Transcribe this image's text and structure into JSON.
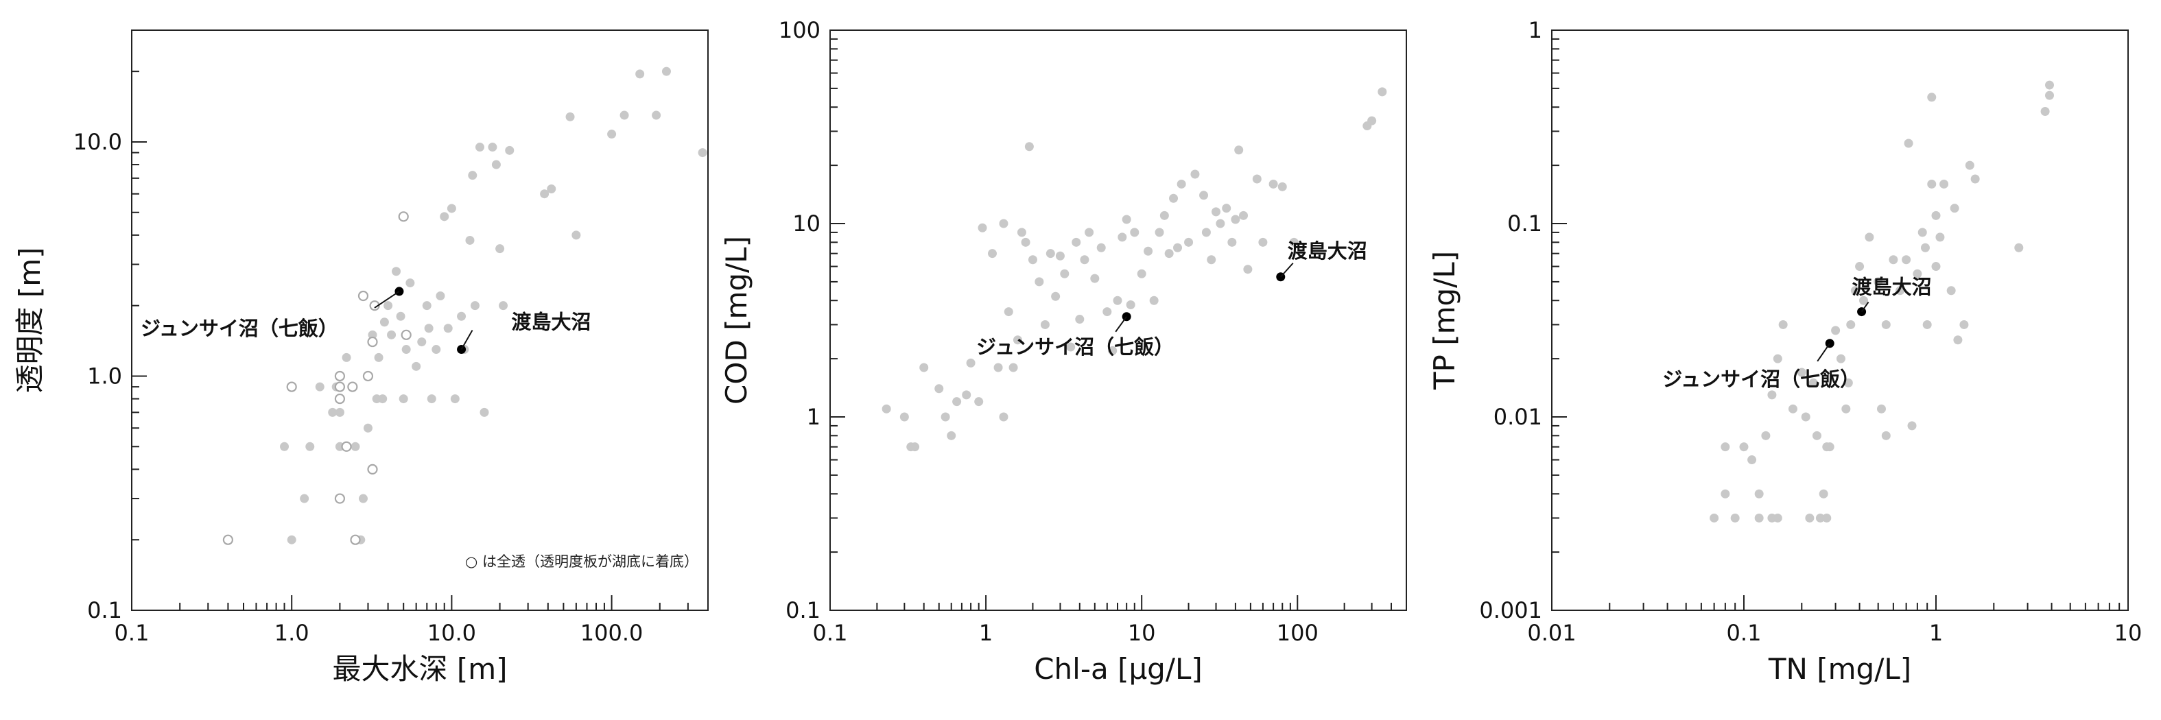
{
  "chart_data": [
    {
      "type": "scatter",
      "xlabel": "最大水深 [m]",
      "ylabel": "透明度 [m]",
      "xscale": "log",
      "yscale": "log",
      "xlim": [
        0.1,
        400
      ],
      "ylim": [
        0.1,
        30
      ],
      "xticks": [
        0.1,
        1,
        10,
        100
      ],
      "xtick_labels": [
        "0.1",
        "1.0",
        "10.0",
        "100.0"
      ],
      "yticks": [
        0.1,
        1,
        10
      ],
      "ytick_labels": [
        "0.1",
        "1.0",
        "10.0"
      ],
      "note": "○ は全透（透明度板が湖底に着底）",
      "colors": {
        "points": "#c8c8c8",
        "open_points": "#a8a8a8",
        "highlight": "#000000"
      },
      "series": [
        {
          "marker": "filled",
          "points": [
            [
              0.9,
              0.5
            ],
            [
              1.0,
              0.2
            ],
            [
              1.2,
              0.3
            ],
            [
              1.3,
              0.5
            ],
            [
              1.5,
              0.9
            ],
            [
              1.8,
              0.7
            ],
            [
              1.9,
              0.9
            ],
            [
              2.0,
              0.7
            ],
            [
              2.0,
              0.5
            ],
            [
              2.2,
              1.2
            ],
            [
              2.5,
              0.5
            ],
            [
              2.7,
              0.2
            ],
            [
              2.8,
              0.3
            ],
            [
              3.0,
              0.6
            ],
            [
              3.0,
              1.0
            ],
            [
              3.2,
              1.5
            ],
            [
              3.4,
              0.8
            ],
            [
              3.5,
              1.2
            ],
            [
              3.7,
              0.8
            ],
            [
              3.8,
              1.7
            ],
            [
              4.0,
              2.0
            ],
            [
              4.2,
              1.5
            ],
            [
              4.5,
              2.8
            ],
            [
              4.8,
              1.8
            ],
            [
              5.0,
              0.8
            ],
            [
              5.2,
              1.3
            ],
            [
              5.5,
              2.5
            ],
            [
              6.0,
              1.1
            ],
            [
              6.5,
              1.4
            ],
            [
              7.0,
              2.0
            ],
            [
              7.2,
              1.6
            ],
            [
              7.5,
              0.8
            ],
            [
              8.0,
              1.3
            ],
            [
              8.5,
              2.2
            ],
            [
              9.0,
              4.8
            ],
            [
              9.5,
              1.6
            ],
            [
              10.0,
              5.2
            ],
            [
              10.5,
              0.8
            ],
            [
              11.5,
              1.8
            ],
            [
              12.0,
              1.3
            ],
            [
              13.0,
              3.8
            ],
            [
              13.5,
              7.2
            ],
            [
              14.0,
              2.0
            ],
            [
              15.0,
              9.5
            ],
            [
              16.0,
              0.7
            ],
            [
              18.0,
              9.5
            ],
            [
              19.0,
              8.0
            ],
            [
              20.0,
              3.5
            ],
            [
              21.0,
              2.0
            ],
            [
              23.0,
              9.2
            ],
            [
              38.0,
              6.0
            ],
            [
              42.0,
              6.3
            ],
            [
              55.0,
              12.8
            ],
            [
              60.0,
              4.0
            ],
            [
              100.0,
              10.8
            ],
            [
              120.0,
              13.0
            ],
            [
              150.0,
              19.5
            ],
            [
              190.0,
              13.0
            ],
            [
              220.0,
              20.0
            ],
            [
              370.0,
              9.0
            ]
          ]
        },
        {
          "marker": "open",
          "points": [
            [
              0.4,
              0.2
            ],
            [
              1.0,
              0.9
            ],
            [
              2.0,
              0.3
            ],
            [
              2.0,
              1.0
            ],
            [
              2.0,
              0.9
            ],
            [
              2.0,
              0.8
            ],
            [
              2.2,
              0.5
            ],
            [
              2.4,
              0.9
            ],
            [
              2.5,
              0.2
            ],
            [
              2.8,
              2.2
            ],
            [
              3.0,
              1.0
            ],
            [
              3.2,
              0.4
            ],
            [
              3.2,
              1.4
            ],
            [
              3.3,
              2.0
            ],
            [
              5.0,
              4.8
            ],
            [
              5.2,
              1.5
            ]
          ]
        },
        {
          "marker": "highlight",
          "points": [
            [
              4.7,
              2.3
            ],
            [
              11.5,
              1.3
            ]
          ]
        }
      ],
      "annotations": [
        {
          "text": "ジュンサイ沼（七飯）",
          "x": 4.7,
          "y": 2.3
        },
        {
          "text": "渡島大沼",
          "x": 11.5,
          "y": 1.3
        }
      ]
    },
    {
      "type": "scatter",
      "xlabel": "Chl-a [μg/L]",
      "ylabel": "COD [mg/L]",
      "xscale": "log",
      "yscale": "log",
      "xlim": [
        0.1,
        500
      ],
      "ylim": [
        0.1,
        100
      ],
      "xticks": [
        0.1,
        1,
        10,
        100
      ],
      "xtick_labels": [
        "0.1",
        "1",
        "10",
        "100"
      ],
      "yticks": [
        0.1,
        1,
        10,
        100
      ],
      "ytick_labels": [
        "0.1",
        "1",
        "10",
        "100"
      ],
      "colors": {
        "points": "#c8c8c8",
        "highlight": "#000000"
      },
      "series": [
        {
          "marker": "filled",
          "points": [
            [
              0.23,
              1.1
            ],
            [
              0.3,
              1.0
            ],
            [
              0.33,
              0.7
            ],
            [
              0.35,
              0.7
            ],
            [
              0.4,
              1.8
            ],
            [
              0.5,
              1.4
            ],
            [
              0.55,
              1.0
            ],
            [
              0.6,
              0.8
            ],
            [
              0.65,
              1.2
            ],
            [
              0.75,
              1.3
            ],
            [
              0.8,
              1.9
            ],
            [
              0.9,
              1.2
            ],
            [
              0.95,
              9.5
            ],
            [
              1.1,
              7.0
            ],
            [
              1.2,
              1.8
            ],
            [
              1.3,
              10.0
            ],
            [
              1.3,
              1.0
            ],
            [
              1.4,
              3.5
            ],
            [
              1.5,
              1.8
            ],
            [
              1.6,
              2.5
            ],
            [
              1.7,
              9.0
            ],
            [
              1.8,
              8.0
            ],
            [
              1.9,
              25.0
            ],
            [
              2.0,
              6.5
            ],
            [
              2.2,
              5.0
            ],
            [
              2.4,
              3.0
            ],
            [
              2.6,
              7.0
            ],
            [
              2.8,
              4.2
            ],
            [
              3.0,
              6.8
            ],
            [
              3.2,
              5.5
            ],
            [
              3.5,
              2.3
            ],
            [
              3.8,
              8.0
            ],
            [
              4.0,
              3.2
            ],
            [
              4.3,
              6.5
            ],
            [
              4.6,
              9.0
            ],
            [
              5.0,
              5.2
            ],
            [
              5.5,
              7.5
            ],
            [
              6.0,
              3.5
            ],
            [
              6.5,
              2.2
            ],
            [
              7.0,
              4.0
            ],
            [
              7.5,
              8.5
            ],
            [
              8.0,
              10.5
            ],
            [
              8.5,
              3.8
            ],
            [
              9.0,
              9.0
            ],
            [
              10.0,
              5.5
            ],
            [
              11.0,
              7.2
            ],
            [
              12.0,
              4.0
            ],
            [
              13.0,
              9.0
            ],
            [
              14.0,
              11.0
            ],
            [
              15.0,
              7.0
            ],
            [
              16.0,
              13.5
            ],
            [
              17.0,
              7.5
            ],
            [
              18.0,
              16.0
            ],
            [
              20.0,
              8.0
            ],
            [
              22.0,
              18.0
            ],
            [
              25.0,
              14.0
            ],
            [
              26.0,
              9.0
            ],
            [
              28.0,
              6.5
            ],
            [
              30.0,
              11.5
            ],
            [
              32.0,
              10.0
            ],
            [
              35.0,
              12.0
            ],
            [
              38.0,
              8.0
            ],
            [
              40.0,
              10.5
            ],
            [
              42.0,
              24.0
            ],
            [
              45.0,
              11.0
            ],
            [
              48.0,
              5.8
            ],
            [
              55.0,
              17.0
            ],
            [
              60.0,
              8.0
            ],
            [
              70.0,
              16.0
            ],
            [
              80.0,
              15.5
            ],
            [
              95.0,
              8.0
            ],
            [
              280.0,
              32.0
            ],
            [
              300.0,
              34.0
            ],
            [
              350.0,
              48.0
            ]
          ]
        },
        {
          "marker": "highlight",
          "points": [
            [
              8.0,
              3.3
            ],
            [
              78.0,
              5.3
            ]
          ]
        }
      ],
      "annotations": [
        {
          "text": "ジュンサイ沼（七飯）",
          "x": 8.0,
          "y": 3.3
        },
        {
          "text": "渡島大沼",
          "x": 78.0,
          "y": 5.3
        }
      ]
    },
    {
      "type": "scatter",
      "xlabel": "TN [mg/L]",
      "ylabel": "TP [mg/L]",
      "xscale": "log",
      "yscale": "log",
      "xlim": [
        0.01,
        10
      ],
      "ylim": [
        0.001,
        1
      ],
      "xticks": [
        0.01,
        0.1,
        1,
        10
      ],
      "xtick_labels": [
        "0.01",
        "0.1",
        "1",
        "10"
      ],
      "yticks": [
        0.001,
        0.01,
        0.1,
        1
      ],
      "ytick_labels": [
        "0.001",
        "0.01",
        "0.1",
        "1"
      ],
      "colors": {
        "points": "#c8c8c8",
        "highlight": "#000000"
      },
      "series": [
        {
          "marker": "filled",
          "points": [
            [
              0.07,
              0.003
            ],
            [
              0.08,
              0.004
            ],
            [
              0.08,
              0.007
            ],
            [
              0.09,
              0.003
            ],
            [
              0.1,
              0.007
            ],
            [
              0.11,
              0.006
            ],
            [
              0.12,
              0.003
            ],
            [
              0.12,
              0.004
            ],
            [
              0.13,
              0.008
            ],
            [
              0.14,
              0.003
            ],
            [
              0.14,
              0.013
            ],
            [
              0.15,
              0.003
            ],
            [
              0.15,
              0.02
            ],
            [
              0.16,
              0.03
            ],
            [
              0.18,
              0.011
            ],
            [
              0.2,
              0.017
            ],
            [
              0.21,
              0.01
            ],
            [
              0.22,
              0.003
            ],
            [
              0.23,
              0.015
            ],
            [
              0.24,
              0.008
            ],
            [
              0.25,
              0.003
            ],
            [
              0.26,
              0.004
            ],
            [
              0.27,
              0.003
            ],
            [
              0.27,
              0.007
            ],
            [
              0.28,
              0.007
            ],
            [
              0.3,
              0.028
            ],
            [
              0.32,
              0.02
            ],
            [
              0.34,
              0.011
            ],
            [
              0.35,
              0.015
            ],
            [
              0.36,
              0.03
            ],
            [
              0.38,
              0.045
            ],
            [
              0.4,
              0.06
            ],
            [
              0.42,
              0.04
            ],
            [
              0.45,
              0.085
            ],
            [
              0.5,
              0.05
            ],
            [
              0.52,
              0.011
            ],
            [
              0.55,
              0.03
            ],
            [
              0.55,
              0.008
            ],
            [
              0.6,
              0.065
            ],
            [
              0.65,
              0.045
            ],
            [
              0.7,
              0.065
            ],
            [
              0.72,
              0.26
            ],
            [
              0.75,
              0.009
            ],
            [
              0.8,
              0.055
            ],
            [
              0.85,
              0.09
            ],
            [
              0.88,
              0.075
            ],
            [
              0.9,
              0.03
            ],
            [
              0.95,
              0.45
            ],
            [
              0.95,
              0.16
            ],
            [
              1.0,
              0.11
            ],
            [
              1.0,
              0.06
            ],
            [
              1.05,
              0.085
            ],
            [
              1.1,
              0.16
            ],
            [
              1.2,
              0.045
            ],
            [
              1.25,
              0.12
            ],
            [
              1.3,
              0.025
            ],
            [
              1.4,
              0.03
            ],
            [
              1.5,
              0.2
            ],
            [
              1.6,
              0.17
            ],
            [
              2.7,
              0.075
            ],
            [
              3.7,
              0.38
            ],
            [
              3.9,
              0.52
            ],
            [
              3.9,
              0.46
            ]
          ]
        },
        {
          "marker": "highlight",
          "points": [
            [
              0.28,
              0.024
            ],
            [
              0.41,
              0.035
            ]
          ]
        }
      ],
      "annotations": [
        {
          "text": "ジュンサイ沼（七飯）",
          "x": 0.28,
          "y": 0.024
        },
        {
          "text": "渡島大沼",
          "x": 0.41,
          "y": 0.035
        }
      ]
    }
  ]
}
